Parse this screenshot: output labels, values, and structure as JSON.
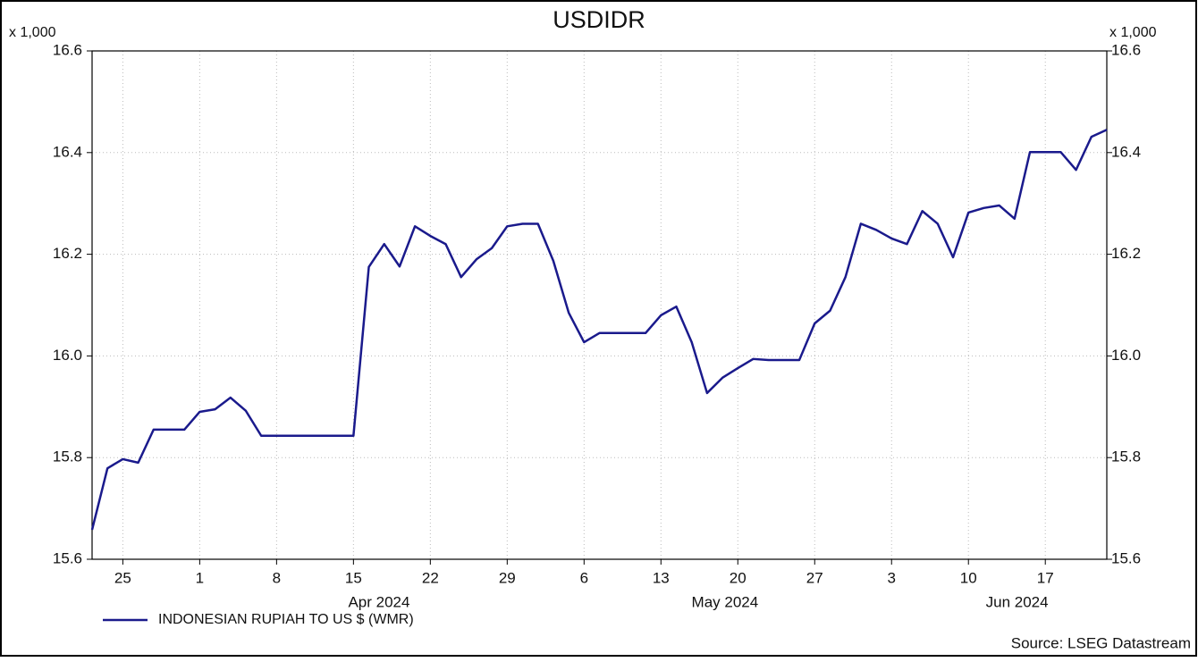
{
  "chart_data": {
    "type": "line",
    "title": "USDIDR",
    "y_multiplier_label": "x 1,000",
    "source": "Source: LSEG Datastream",
    "categories": [
      "2024-03-21",
      "2024-03-22",
      "2024-03-25",
      "2024-03-26",
      "2024-03-27",
      "2024-03-28",
      "2024-03-29",
      "2024-04-01",
      "2024-04-02",
      "2024-04-03",
      "2024-04-04",
      "2024-04-05",
      "2024-04-08",
      "2024-04-09",
      "2024-04-10",
      "2024-04-11",
      "2024-04-12",
      "2024-04-15",
      "2024-04-16",
      "2024-04-17",
      "2024-04-18",
      "2024-04-19",
      "2024-04-22",
      "2024-04-23",
      "2024-04-24",
      "2024-04-25",
      "2024-04-26",
      "2024-04-29",
      "2024-04-30",
      "2024-05-01",
      "2024-05-02",
      "2024-05-03",
      "2024-05-06",
      "2024-05-07",
      "2024-05-08",
      "2024-05-09",
      "2024-05-10",
      "2024-05-13",
      "2024-05-14",
      "2024-05-15",
      "2024-05-16",
      "2024-05-17",
      "2024-05-20",
      "2024-05-21",
      "2024-05-22",
      "2024-05-23",
      "2024-05-24",
      "2024-05-27",
      "2024-05-28",
      "2024-05-29",
      "2024-05-30",
      "2024-05-31",
      "2024-06-03",
      "2024-06-04",
      "2024-06-05",
      "2024-06-06",
      "2024-06-07",
      "2024-06-10",
      "2024-06-11",
      "2024-06-12",
      "2024-06-13",
      "2024-06-14",
      "2024-06-17",
      "2024-06-18",
      "2024-06-19",
      "2024-06-20",
      "2024-06-21"
    ],
    "series": [
      {
        "name": "INDONESIAN RUPIAH TO US $ (WMR)",
        "color": "#1a1a8c",
        "values": [
          15.658,
          15.779,
          15.797,
          15.79,
          15.855,
          15.855,
          15.855,
          15.89,
          15.895,
          15.918,
          15.892,
          15.843,
          15.843,
          15.843,
          15.843,
          15.843,
          15.843,
          15.843,
          16.175,
          16.22,
          16.176,
          16.255,
          16.236,
          16.22,
          16.155,
          16.19,
          16.212,
          16.255,
          16.26,
          16.26,
          16.187,
          16.085,
          16.027,
          16.045,
          16.045,
          16.045,
          16.045,
          16.08,
          16.097,
          16.027,
          15.927,
          15.957,
          15.976,
          15.994,
          15.992,
          15.992,
          15.992,
          16.064,
          16.089,
          16.155,
          16.26,
          16.248,
          16.231,
          16.22,
          16.285,
          16.26,
          16.194,
          16.282,
          16.291,
          16.296,
          16.27,
          16.401,
          16.401,
          16.401,
          16.366,
          16.431,
          16.445
        ]
      }
    ],
    "xticks": [
      {
        "value": "2024-03-25",
        "label": "25"
      },
      {
        "value": "2024-04-01",
        "label": "1"
      },
      {
        "value": "2024-04-08",
        "label": "8"
      },
      {
        "value": "2024-04-15",
        "label": "15"
      },
      {
        "value": "2024-04-22",
        "label": "22"
      },
      {
        "value": "2024-04-29",
        "label": "29"
      },
      {
        "value": "2024-05-06",
        "label": "6"
      },
      {
        "value": "2024-05-13",
        "label": "13"
      },
      {
        "value": "2024-05-20",
        "label": "20"
      },
      {
        "value": "2024-05-27",
        "label": "27"
      },
      {
        "value": "2024-06-03",
        "label": "3"
      },
      {
        "value": "2024-06-10",
        "label": "10"
      },
      {
        "value": "2024-06-17",
        "label": "17"
      }
    ],
    "x_month_labels": [
      {
        "value": "2024-04",
        "label": "Apr 2024"
      },
      {
        "value": "2024-05",
        "label": "May 2024"
      },
      {
        "value": "2024-06",
        "label": "Jun 2024"
      }
    ],
    "ylim": [
      15.6,
      16.6
    ],
    "yticks": [
      15.6,
      15.8,
      {
        "value": 16,
        "label": "16.0"
      },
      16.2,
      16.4,
      16.6
    ],
    "y2lim": [
      15.6,
      16.6
    ],
    "y2ticks": [
      15.6,
      15.8,
      {
        "value": 16,
        "label": "16.0"
      },
      16.2,
      16.4,
      16.6
    ],
    "grid": true
  }
}
